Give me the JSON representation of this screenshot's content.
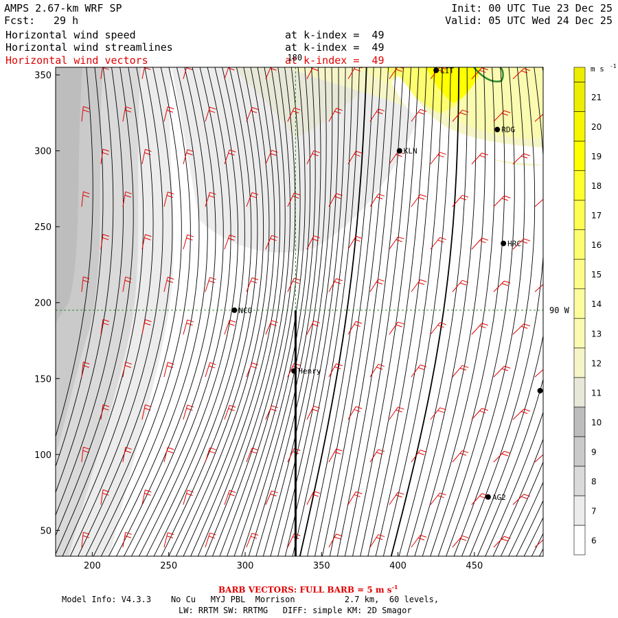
{
  "header": {
    "title_left": "AMPS 2.67-km WRF SP",
    "fcst_label": "Fcst:",
    "fcst_value": "29 h",
    "init": "Init: 00 UTC Tue 23 Dec 25",
    "valid": "Valid: 05 UTC Wed 24 Dec 25",
    "fields": [
      {
        "name": "Horizontal wind speed",
        "level": "at k-index =  49",
        "color": "#000000"
      },
      {
        "name": "Horizontal wind streamlines",
        "level": "at k-index =  49",
        "color": "#000000"
      },
      {
        "name": "Horizontal wind vectors",
        "level": "at k-index =  49",
        "color": "#e00000"
      }
    ]
  },
  "footer": {
    "barb_note": "BARB VECTORS:  FULL BARB = 5 m s",
    "barb_exp": "-1",
    "model_info": "Model Info: V4.3.3    No Cu   MYJ PBL  Morrison          2.7 km,  60 levels,",
    "physics": "LW: RRTM SW: RRTMG   DIFF: simple KM: 2D Smagor"
  },
  "chart_data": {
    "type": "heatmap",
    "title": "Horizontal wind speed",
    "xlim": [
      176,
      495
    ],
    "ylim": [
      33,
      355
    ],
    "x_ticks": [
      200,
      250,
      300,
      350,
      400,
      450
    ],
    "y_ticks": [
      50,
      100,
      150,
      200,
      250,
      300,
      350
    ],
    "colorbar": {
      "units_label": "m s",
      "units_exp": "-1",
      "levels": [
        6,
        7,
        8,
        9,
        10,
        11,
        12,
        13,
        14,
        15,
        16,
        17,
        18,
        19,
        20,
        21
      ],
      "colors": [
        "#ffffff",
        "#ececec",
        "#dadada",
        "#cacaca",
        "#bdbdbd",
        "#e8e8d8",
        "#f5f5c8",
        "#fafab0",
        "#fcfc9c",
        "#fcfc88",
        "#fdfd70",
        "#fefe50",
        "#ffff2a",
        "#ffff00",
        "#f6f600",
        "#eded00"
      ]
    },
    "reference_lines": [
      {
        "orientation": "vertical",
        "x": 333,
        "label": "180"
      },
      {
        "orientation": "horizontal",
        "y": 195,
        "label": "90 W"
      }
    ],
    "stations": [
      {
        "name": "NCO",
        "x": 293,
        "y": 195
      },
      {
        "name": "Henry",
        "x": 332,
        "y": 155
      },
      {
        "name": "KLN",
        "x": 401,
        "y": 300
      },
      {
        "name": "RDG",
        "x": 465,
        "y": 314
      },
      {
        "name": "HRC",
        "x": 469,
        "y": 239
      },
      {
        "name": "AG2",
        "x": 459,
        "y": 72
      },
      {
        "name": "LIT",
        "x": 425,
        "y": 353
      },
      {
        "name": "",
        "x": 493,
        "y": 142
      }
    ],
    "coastline_color": "#2e8b2e",
    "streamline_color": "#000000",
    "barb_color": "#e00000",
    "grid_line_color": "#2e8b2e"
  }
}
